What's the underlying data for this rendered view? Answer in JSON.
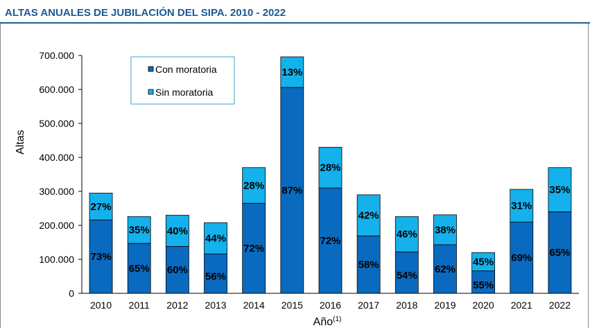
{
  "header": {
    "title": "ALTAS ANUALES DE JUBILACIÓN DEL SIPA. 2010 - 2022"
  },
  "colors": {
    "con": "#0a6abf",
    "sin": "#14b1ec",
    "title": "#1a5a96",
    "legend_border": "#3aa6c8"
  },
  "chart_data": {
    "type": "bar",
    "stacked": true,
    "title": "ALTAS ANUALES DE JUBILACIÓN DEL SIPA. 2010 - 2022",
    "xlabel": "Año",
    "xlabel_sup": "(1)",
    "ylabel": "Altas",
    "ylim": [
      0,
      700000
    ],
    "yticks": [
      0,
      100000,
      200000,
      300000,
      400000,
      500000,
      600000,
      700000
    ],
    "ytick_labels": [
      "0",
      "100.000",
      "200.000",
      "300.000",
      "400.000",
      "500.000",
      "600.000",
      "700.000"
    ],
    "categories": [
      "2010",
      "2011",
      "2012",
      "2013",
      "2014",
      "2015",
      "2016",
      "2017",
      "2018",
      "2019",
      "2020",
      "2021",
      "2022"
    ],
    "series": [
      {
        "name": "Con moratoria",
        "values": [
          216000,
          147000,
          138000,
          116000,
          265000,
          606000,
          310000,
          169000,
          122000,
          143000,
          66000,
          210000,
          240000
        ],
        "labels": [
          "73%",
          "65%",
          "60%",
          "56%",
          "72%",
          "87%",
          "72%",
          "58%",
          "54%",
          "62%",
          "55%",
          "69%",
          "65%"
        ]
      },
      {
        "name": "Sin moratoria",
        "values": [
          79000,
          79000,
          92000,
          92000,
          105000,
          90000,
          120000,
          121000,
          104000,
          88000,
          54000,
          96000,
          130000
        ],
        "labels": [
          "27%",
          "35%",
          "40%",
          "44%",
          "28%",
          "13%",
          "28%",
          "42%",
          "46%",
          "38%",
          "45%",
          "31%",
          "35%"
        ]
      }
    ],
    "legend": {
      "position": "top-left",
      "items": [
        "Con moratoria",
        "Sin moratoria"
      ]
    }
  }
}
